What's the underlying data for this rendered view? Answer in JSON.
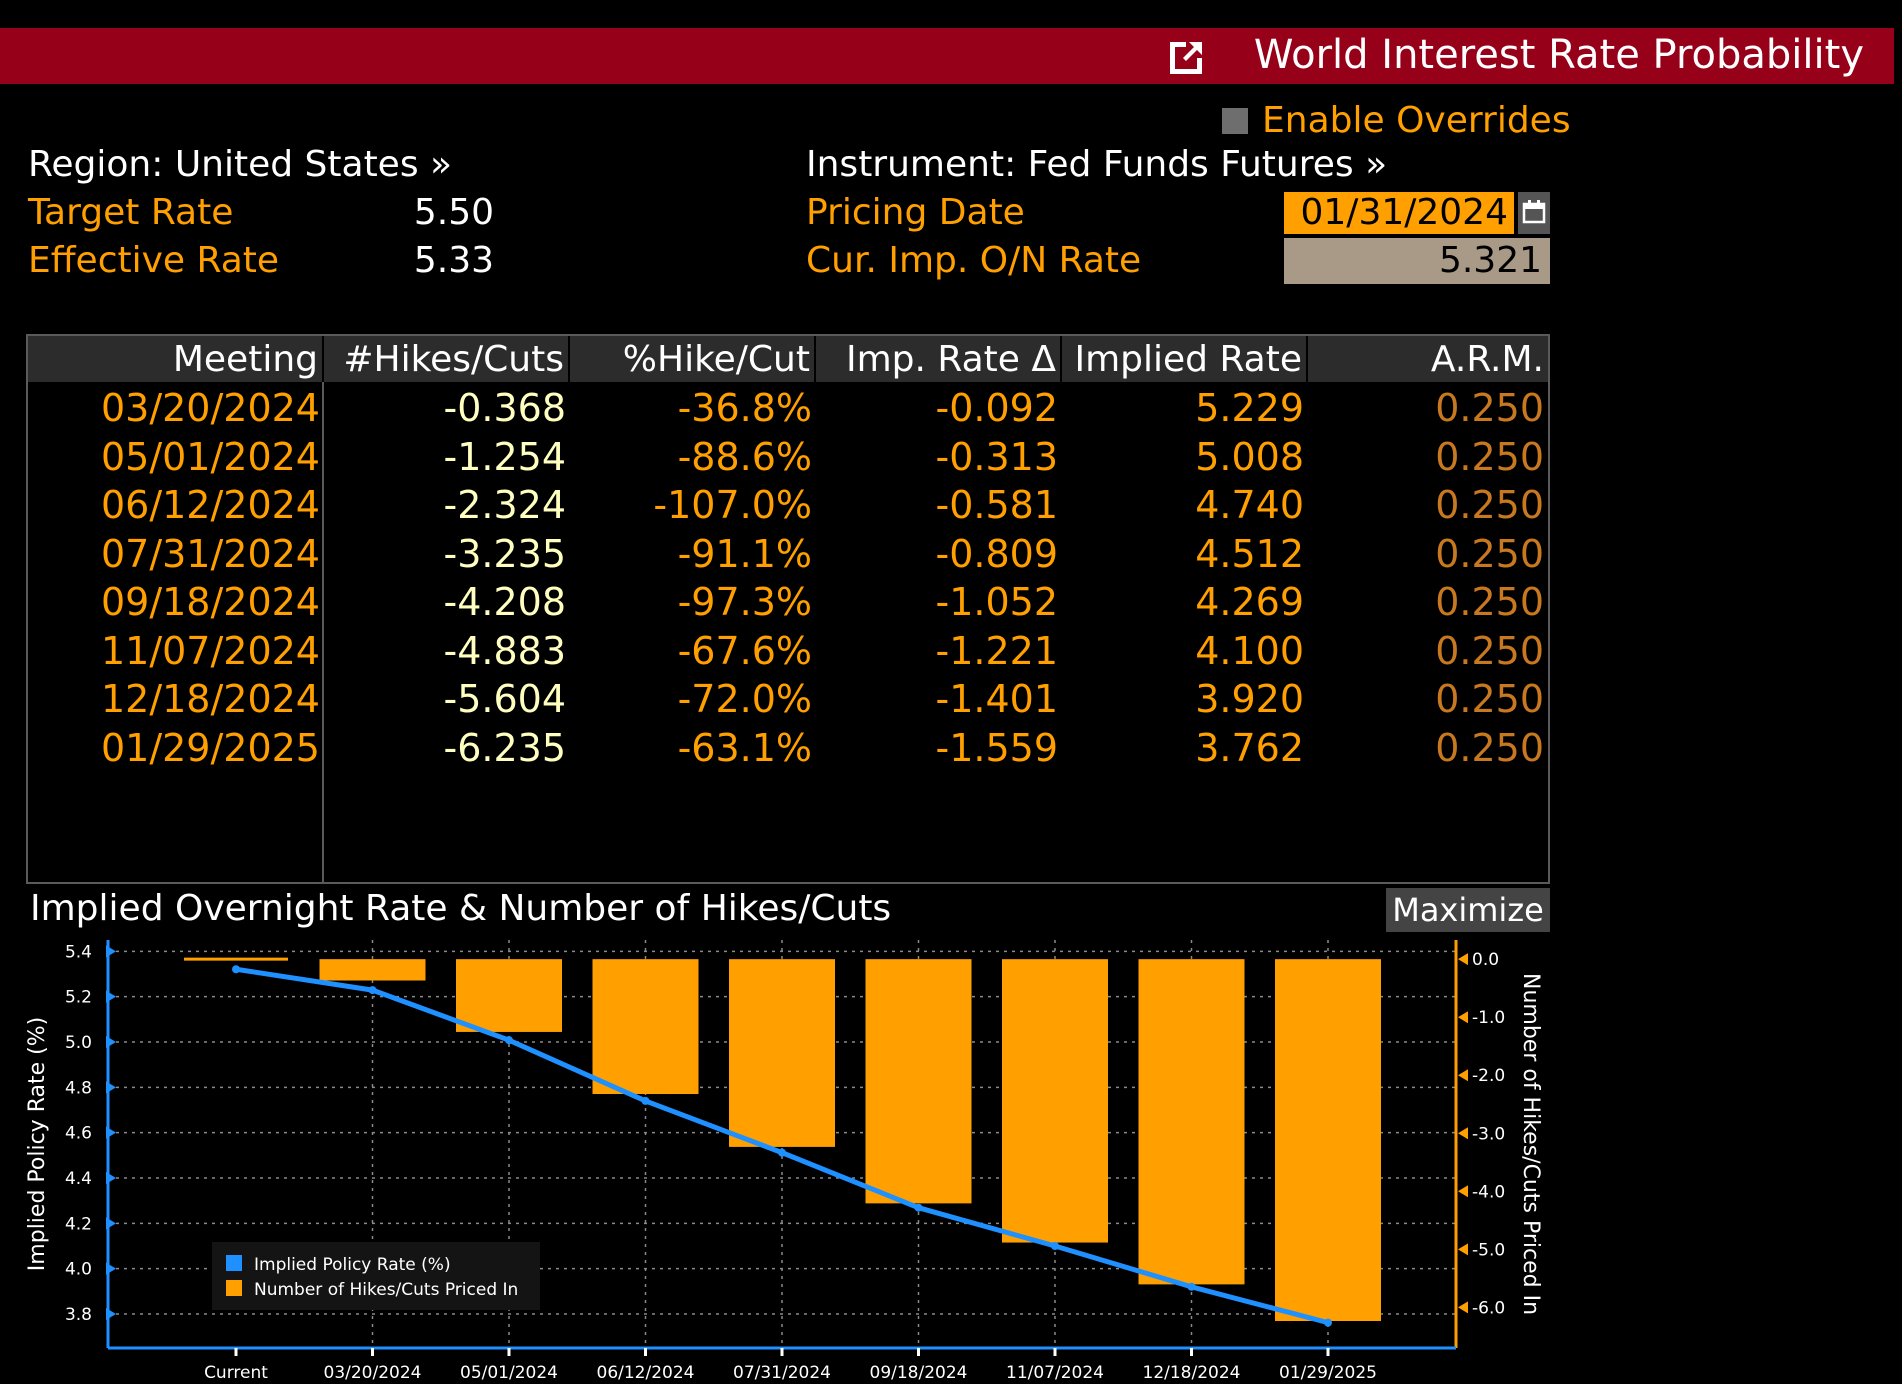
{
  "header": {
    "title": "World Interest Rate Probability",
    "icon": "external-link-icon"
  },
  "overrides": {
    "label": "Enable Overrides",
    "checked": false
  },
  "left_info": {
    "region": "Region: United States »",
    "target_rate_label": "Target Rate",
    "target_rate_value": "5.50",
    "effective_rate_label": "Effective Rate",
    "effective_rate_value": "5.33"
  },
  "right_info": {
    "instrument": "Instrument: Fed Funds Futures »",
    "pricing_date_label": "Pricing Date",
    "pricing_date_value": "01/31/2024",
    "cur_rate_label": "Cur. Imp. O/N Rate",
    "cur_rate_value": "5.321"
  },
  "table": {
    "columns": [
      "Meeting",
      "#Hikes/Cuts",
      "%Hike/Cut",
      "Imp. Rate Δ",
      "Implied Rate",
      "A.R.M."
    ],
    "rows": [
      [
        "03/20/2024",
        "-0.368",
        "-36.8%",
        "-0.092",
        "5.229",
        "0.250"
      ],
      [
        "05/01/2024",
        "-1.254",
        "-88.6%",
        "-0.313",
        "5.008",
        "0.250"
      ],
      [
        "06/12/2024",
        "-2.324",
        "-107.0%",
        "-0.581",
        "4.740",
        "0.250"
      ],
      [
        "07/31/2024",
        "-3.235",
        "-91.1%",
        "-0.809",
        "4.512",
        "0.250"
      ],
      [
        "09/18/2024",
        "-4.208",
        "-97.3%",
        "-1.052",
        "4.269",
        "0.250"
      ],
      [
        "11/07/2024",
        "-4.883",
        "-67.6%",
        "-1.221",
        "4.100",
        "0.250"
      ],
      [
        "12/18/2024",
        "-5.604",
        "-72.0%",
        "-1.401",
        "3.920",
        "0.250"
      ],
      [
        "01/29/2025",
        "-6.235",
        "-63.1%",
        "-1.559",
        "3.762",
        "0.250"
      ]
    ]
  },
  "chart": {
    "title": "Implied Overnight Rate & Number of Hikes/Cuts",
    "maximize_label": "Maximize"
  },
  "chart_data": {
    "type": "bar",
    "categories": [
      "Current",
      "03/20/2024",
      "05/01/2024",
      "06/12/2024",
      "07/31/2024",
      "09/18/2024",
      "11/07/2024",
      "12/18/2024",
      "01/29/2025"
    ],
    "series": [
      {
        "name": "Implied Policy Rate (%)",
        "type": "line",
        "axis": "left",
        "color": "#1e90ff",
        "values": [
          5.321,
          5.229,
          5.008,
          4.74,
          4.512,
          4.269,
          4.1,
          3.92,
          3.762
        ]
      },
      {
        "name": "Number of Hikes/Cuts Priced In",
        "type": "bar",
        "axis": "right",
        "color": "#ffa000",
        "values": [
          0,
          -0.368,
          -1.254,
          -2.324,
          -3.235,
          -4.208,
          -4.883,
          -5.604,
          -6.235
        ]
      }
    ],
    "ylabel": "Implied Policy Rate (%)",
    "ylabel_right": "Number of Hikes/Cuts Priced In",
    "ylim": [
      3.65,
      5.45
    ],
    "ylim_right": [
      -6.7,
      0.33
    ],
    "yticks": [
      "5.4",
      "5.2",
      "5.0",
      "4.8",
      "4.6",
      "4.4",
      "4.2",
      "4.0",
      "3.8"
    ],
    "yticks_right": [
      "0.0",
      "-1.0",
      "-2.0",
      "-3.0",
      "-4.0",
      "-5.0",
      "-6.0"
    ],
    "grid": true,
    "legend_position": "bottom-left"
  }
}
